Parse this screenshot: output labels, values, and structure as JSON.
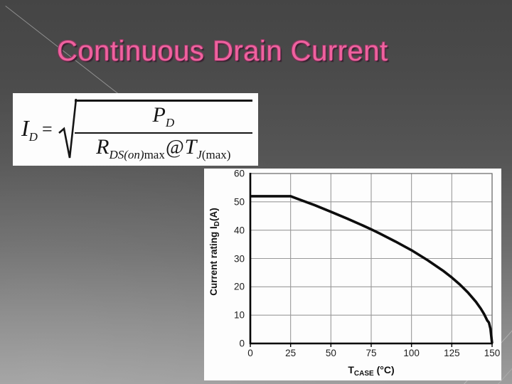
{
  "slide": {
    "title": "Continuous Drain Current"
  },
  "formula": {
    "lhs_base": "I",
    "lhs_sub": "D",
    "equals": "=",
    "radical_symbol": "sqrt",
    "num_base": "P",
    "num_sub": "D",
    "den_r_base": "R",
    "den_r_sub_italic": "DS(on)",
    "den_r_sub_upright": "max",
    "den_at": "@",
    "den_t_base": "T",
    "den_t_sub_italic": "J",
    "den_t_sub_upright": "(max)"
  },
  "chart_data": {
    "type": "line",
    "title": "",
    "xlabel": "T_CASE (°C)",
    "ylabel": "Current rating I_D(A)",
    "xlabel_base": "T",
    "xlabel_sub": "CASE",
    "xlabel_unit": " (°C)",
    "ylabel_prefix": "Current rating I",
    "ylabel_sub": "D",
    "ylabel_suffix": "(A)",
    "xlim": [
      0,
      150
    ],
    "ylim": [
      0,
      60
    ],
    "xticks": [
      0,
      25,
      50,
      75,
      100,
      125,
      150
    ],
    "yticks": [
      0,
      10,
      20,
      30,
      40,
      50,
      60
    ],
    "grid": true,
    "legend": false,
    "series": [
      {
        "points": [
          [
            0,
            52
          ],
          [
            25,
            52
          ],
          [
            30,
            50.9
          ],
          [
            40,
            48.8
          ],
          [
            50,
            46.5
          ],
          [
            60,
            44.1
          ],
          [
            70,
            41.6
          ],
          [
            75,
            40.3
          ],
          [
            80,
            38.9
          ],
          [
            90,
            36.0
          ],
          [
            100,
            32.9
          ],
          [
            110,
            29.4
          ],
          [
            120,
            25.5
          ],
          [
            125,
            23.3
          ],
          [
            130,
            20.8
          ],
          [
            135,
            18.0
          ],
          [
            140,
            14.7
          ],
          [
            143,
            12.3
          ],
          [
            145,
            10.4
          ],
          [
            147,
            8.1
          ],
          [
            148,
            7.4
          ],
          [
            149,
            5.2
          ],
          [
            150,
            0
          ]
        ]
      }
    ],
    "colors": {
      "curve": "#0d0d0d",
      "grid": "#999999",
      "axis": "#000000",
      "border": "#666666",
      "plot_background": "#fdfdfd"
    }
  },
  "colors": {
    "title": "#f0619f",
    "background_top": "#454545",
    "background_bottom": "#9d9d9d"
  }
}
